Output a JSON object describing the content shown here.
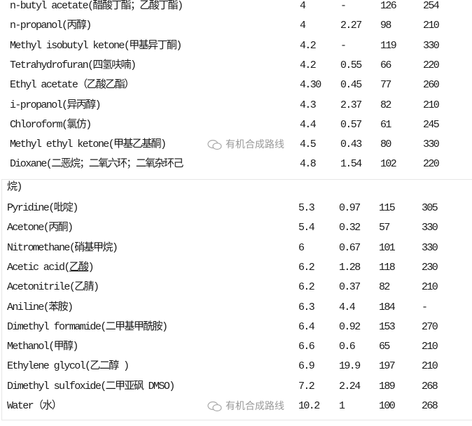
{
  "table_upper": [
    [
      "n-butyl acetate(醋酸丁酯；乙酸丁酯)",
      "4",
      "-",
      "126",
      "254"
    ],
    [
      "n-propanol(丙醇)",
      "4",
      "2.27",
      "98",
      "210"
    ],
    [
      "Methyl isobutyl ketone(甲基异丁酮)",
      "4.2",
      "-",
      "119",
      "330"
    ],
    [
      "Tetrahydrofuran(四氢呋喃)",
      "4.2",
      "0.55",
      "66",
      "220"
    ],
    [
      "Ethyl acetate（乙酸乙酯）",
      "4.30",
      "0.45",
      "77",
      "260"
    ],
    [
      "i-propanol(异丙醇)",
      "4.3",
      "2.37",
      "82",
      "210"
    ],
    [
      "Chloroform(氯仿)",
      "4.4",
      "0.57",
      "61",
      "245"
    ],
    [
      "Methyl ethyl ketone(甲基乙基酮)",
      "4.5",
      "0.43",
      "80",
      "330"
    ],
    [
      "Dioxane(二恶烷；二氧六环；二氧杂环己",
      "4.8",
      "1.54",
      "102",
      "220"
    ]
  ],
  "continuation": "烷)",
  "table_lower": [
    [
      "Pyridine(吡啶)",
      "5.3",
      "0.97",
      "115",
      "305"
    ],
    [
      "Acetone(丙酮)",
      "5.4",
      "0.32",
      "57",
      "330"
    ],
    [
      "Nitromethane(硝基甲烷)",
      "6",
      "0.67",
      "101",
      "330"
    ],
    [
      "Acetic acid(乙酸)",
      "6.2",
      "1.28",
      "118",
      "230"
    ],
    [
      "Acetonitrile(乙腈)",
      "6.2",
      "0.37",
      "82",
      "210"
    ],
    [
      "Aniline(苯胺)",
      "6.3",
      "4.4",
      "184",
      "-"
    ],
    [
      "Dimethyl formamide(二甲基甲酰胺)",
      "6.4",
      "0.92",
      "153",
      "270"
    ],
    [
      "Methanol(甲醇)",
      "6.6",
      "0.6",
      "65",
      "210"
    ],
    [
      "Ethylene glycol(乙二醇 )",
      "6.9",
      "19.9",
      "197",
      "210"
    ],
    [
      "Dimethyl sulfoxide(二甲亚砜 DMSO)",
      "7.2",
      "2.24",
      "189",
      "268"
    ],
    [
      "Water（水）",
      "10.2",
      "1",
      "100",
      "268"
    ]
  ],
  "watermark": "有机合成路线",
  "watermark_icon": "wechat-icon"
}
